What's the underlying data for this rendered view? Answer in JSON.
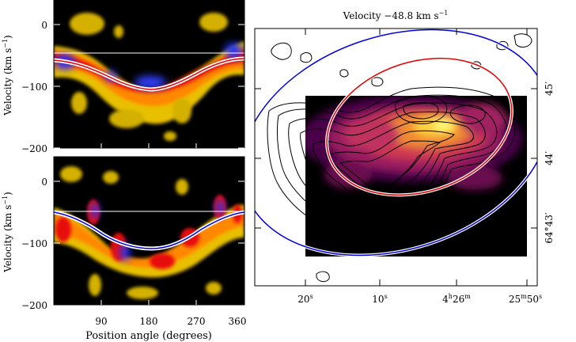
{
  "figure": {
    "right_title": "Velocity −48.8 km s",
    "right_title_sup": "−1",
    "top_ylabel": "Velocity (km s",
    "top_ylabel_sup": "−1",
    "top_ylabel_end": ")",
    "bottom_ylabel": "Velocity (km s",
    "bottom_ylabel_sup": "−1",
    "bottom_ylabel_end": ")",
    "xlabel": "Position angle (degrees)",
    "top_yticks": [
      "0",
      "−100",
      "−200"
    ],
    "bottom_yticks": [
      "0",
      "−100",
      "−200"
    ],
    "xticks": [
      "90",
      "180",
      "270",
      "360"
    ],
    "ra_ticks": [
      {
        "main": "20",
        "sup": "s"
      },
      {
        "main": "10",
        "sup": "s"
      },
      {
        "main": "4",
        "sup": "h",
        "main2": "26",
        "sup2": "m"
      },
      {
        "main": "25",
        "sup": "m",
        "main2": "50",
        "sup2": "s"
      }
    ],
    "dec_ticks": [
      "45′",
      "44′",
      "64°43′"
    ]
  },
  "chart_data": [
    {
      "type": "heatmap",
      "panel": "top position-velocity diagram",
      "xlabel": "Position angle (degrees)",
      "ylabel": "Velocity (km s⁻¹)",
      "xlim": [
        0,
        360
      ],
      "ylim": [
        -200,
        40
      ],
      "horizontal_line_velocity": -48.8,
      "model_curve_color": "#e00000",
      "model_curve": {
        "x": [
          0,
          45,
          90,
          135,
          160,
          180,
          225,
          270,
          315,
          360
        ],
        "y": [
          -56,
          -64,
          -85,
          -105,
          -108,
          -106,
          -95,
          -75,
          -60,
          -56
        ]
      }
    },
    {
      "type": "heatmap",
      "panel": "bottom position-velocity diagram",
      "xlabel": "Position angle (degrees)",
      "ylabel": "Velocity (km s⁻¹)",
      "xlim": [
        0,
        360
      ],
      "ylim": [
        -200,
        40
      ],
      "horizontal_line_velocity": -48.8,
      "model_curve_color": "#0000e0",
      "model_curve": {
        "x": [
          0,
          45,
          90,
          135,
          180,
          225,
          270,
          315,
          360
        ],
        "y": [
          -53,
          -60,
          -82,
          -104,
          -111,
          -104,
          -84,
          -62,
          -53
        ]
      }
    },
    {
      "type": "heatmap",
      "panel": "velocity channel map with contours",
      "title": "Velocity −48.8 km s⁻¹",
      "ra_ticks": [
        "20s",
        "10s",
        "4h26m",
        "25m50s"
      ],
      "dec_ticks": [
        "45′",
        "44′",
        "64°43′"
      ],
      "ellipse_colors": [
        "#e00000",
        "#0000e0"
      ]
    }
  ]
}
